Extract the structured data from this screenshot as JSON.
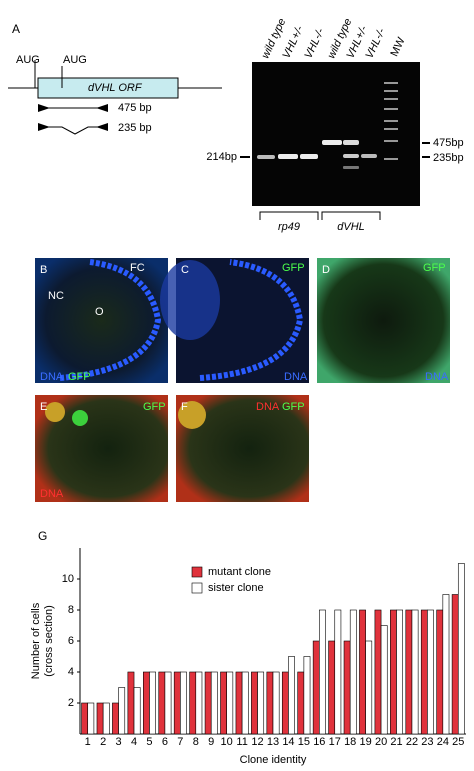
{
  "panel_a": {
    "label": "A",
    "diagram": {
      "aug_labels": [
        "AUG",
        "AUG"
      ],
      "orf": "dVHL ORF",
      "products": [
        "475 bp",
        "235 bp"
      ]
    },
    "gel": {
      "lanes": [
        "wild type",
        "VHL+/-",
        "VHL-/-",
        "wild type",
        "VHL+/-",
        "VHL-/-"
      ],
      "mw": "MW",
      "left_marker": "214bp",
      "right_markers": [
        "475bp",
        "235bp"
      ],
      "groups": [
        "rp49",
        "dVHL"
      ]
    }
  },
  "micrographs": [
    {
      "label": "B",
      "texts": [
        "NC",
        "O",
        "FC"
      ],
      "stain": [
        "DNA",
        "GFP"
      ]
    },
    {
      "label": "C",
      "stain": [
        "GFP",
        "DNA"
      ]
    },
    {
      "label": "D",
      "stain": [
        "GFP",
        "DNA"
      ]
    },
    {
      "label": "E",
      "stain": [
        "GFP",
        "DNA"
      ]
    },
    {
      "label": "F",
      "stain": [
        "DNA",
        "GFP"
      ]
    }
  ],
  "chart_data": {
    "type": "bar",
    "panel_label": "G",
    "ylabel": [
      "Number of cells",
      "(cross section)"
    ],
    "xlabel": "Clone identity",
    "categories": [
      "1",
      "2",
      "3",
      "4",
      "5",
      "6",
      "7",
      "8",
      "9",
      "10",
      "11",
      "12",
      "13",
      "14",
      "15",
      "16",
      "17",
      "18",
      "19",
      "20",
      "21",
      "22",
      "23",
      "24",
      "25"
    ],
    "series": [
      {
        "name": "mutant clone",
        "color": "#e0323c",
        "values": [
          2,
          2,
          2,
          4,
          4,
          4,
          4,
          4,
          4,
          4,
          4,
          4,
          4,
          4,
          4,
          6,
          6,
          6,
          8,
          8,
          8,
          8,
          8,
          8,
          9
        ]
      },
      {
        "name": "sister clone",
        "color": "#ffffff",
        "values": [
          2,
          2,
          3,
          3,
          4,
          4,
          4,
          4,
          4,
          4,
          4,
          4,
          4,
          5,
          5,
          8,
          8,
          8,
          6,
          7,
          8,
          8,
          8,
          9,
          11
        ]
      }
    ],
    "ylim": [
      0,
      12
    ],
    "yticks": [
      2,
      4,
      6,
      8,
      10
    ],
    "grid": false
  }
}
